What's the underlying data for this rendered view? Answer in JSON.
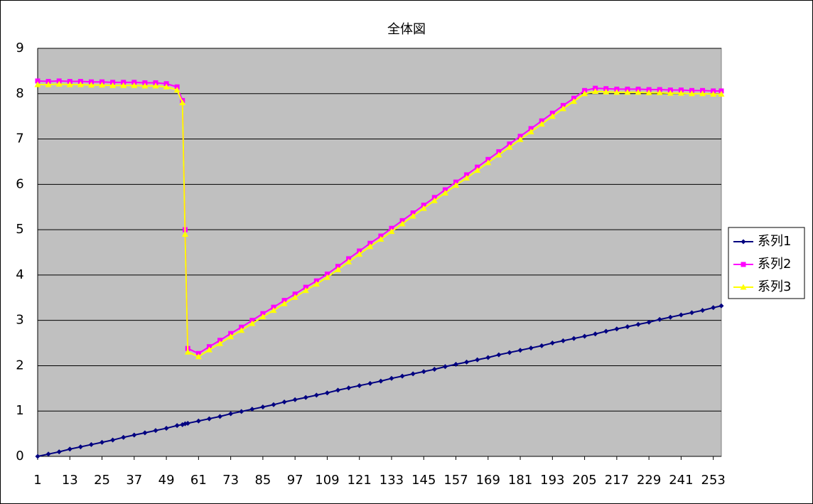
{
  "chart_data": {
    "type": "line",
    "title": "全体図",
    "x": [
      1,
      5,
      9,
      13,
      17,
      21,
      25,
      29,
      33,
      37,
      41,
      45,
      49,
      53,
      55,
      56,
      57,
      61,
      65,
      69,
      73,
      77,
      81,
      85,
      89,
      93,
      97,
      101,
      105,
      109,
      113,
      117,
      121,
      125,
      129,
      133,
      137,
      141,
      145,
      149,
      153,
      157,
      161,
      165,
      169,
      173,
      177,
      181,
      185,
      189,
      193,
      197,
      201,
      205,
      209,
      213,
      217,
      221,
      225,
      229,
      233,
      237,
      241,
      245,
      249,
      253,
      256
    ],
    "series": [
      {
        "name": "系列1",
        "color": "#000080",
        "marker": "diamond",
        "values": [
          0,
          0.05,
          0.1,
          0.16,
          0.21,
          0.26,
          0.31,
          0.36,
          0.42,
          0.47,
          0.52,
          0.57,
          0.62,
          0.68,
          0.7,
          0.72,
          0.73,
          0.78,
          0.83,
          0.88,
          0.94,
          0.99,
          1.04,
          1.09,
          1.14,
          1.2,
          1.25,
          1.3,
          1.35,
          1.4,
          1.46,
          1.51,
          1.56,
          1.61,
          1.66,
          1.72,
          1.77,
          1.82,
          1.87,
          1.92,
          1.98,
          2.03,
          2.08,
          2.13,
          2.18,
          2.24,
          2.29,
          2.34,
          2.39,
          2.44,
          2.5,
          2.55,
          2.6,
          2.65,
          2.7,
          2.76,
          2.81,
          2.86,
          2.91,
          2.96,
          3.02,
          3.07,
          3.12,
          3.17,
          3.22,
          3.28,
          3.32
        ]
      },
      {
        "name": "系列2",
        "color": "#ff00ff",
        "marker": "square",
        "values": [
          8.28,
          8.27,
          8.28,
          8.27,
          8.27,
          8.26,
          8.26,
          8.25,
          8.25,
          8.25,
          8.24,
          8.24,
          8.22,
          8.15,
          7.85,
          5.0,
          2.38,
          2.27,
          2.42,
          2.56,
          2.71,
          2.85,
          3.0,
          3.15,
          3.29,
          3.44,
          3.58,
          3.73,
          3.87,
          4.02,
          4.19,
          4.36,
          4.53,
          4.7,
          4.86,
          5.03,
          5.2,
          5.37,
          5.54,
          5.71,
          5.88,
          6.05,
          6.21,
          6.38,
          6.55,
          6.72,
          6.89,
          7.06,
          7.23,
          7.4,
          7.57,
          7.74,
          7.9,
          8.07,
          8.12,
          8.11,
          8.1,
          8.1,
          8.1,
          8.09,
          8.09,
          8.08,
          8.08,
          8.07,
          8.07,
          8.06,
          8.06
        ]
      },
      {
        "name": "系列3",
        "color": "#ffff00",
        "marker": "triangle",
        "values": [
          8.2,
          8.2,
          8.21,
          8.2,
          8.2,
          8.19,
          8.19,
          8.18,
          8.18,
          8.18,
          8.17,
          8.17,
          8.15,
          8.08,
          7.8,
          4.9,
          2.3,
          2.2,
          2.35,
          2.49,
          2.64,
          2.78,
          2.93,
          3.08,
          3.22,
          3.37,
          3.51,
          3.66,
          3.8,
          3.95,
          4.12,
          4.29,
          4.46,
          4.63,
          4.79,
          4.96,
          5.13,
          5.3,
          5.47,
          5.64,
          5.81,
          5.98,
          6.14,
          6.31,
          6.48,
          6.65,
          6.82,
          6.99,
          7.16,
          7.33,
          7.5,
          7.67,
          7.83,
          8.0,
          8.05,
          8.04,
          8.03,
          8.03,
          8.03,
          8.02,
          8.02,
          8.01,
          8.01,
          8.0,
          8.0,
          7.99,
          7.99
        ]
      }
    ],
    "xlim": [
      1,
      256
    ],
    "xticks": [
      1,
      13,
      25,
      37,
      49,
      61,
      73,
      85,
      97,
      109,
      121,
      133,
      145,
      157,
      169,
      181,
      193,
      205,
      217,
      229,
      241,
      253
    ],
    "ylim": [
      0,
      9
    ],
    "yticks": [
      0,
      1,
      2,
      3,
      4,
      5,
      6,
      7,
      8,
      9
    ],
    "grid": true,
    "legend": "right",
    "plot_background": "#c0c0c0"
  }
}
